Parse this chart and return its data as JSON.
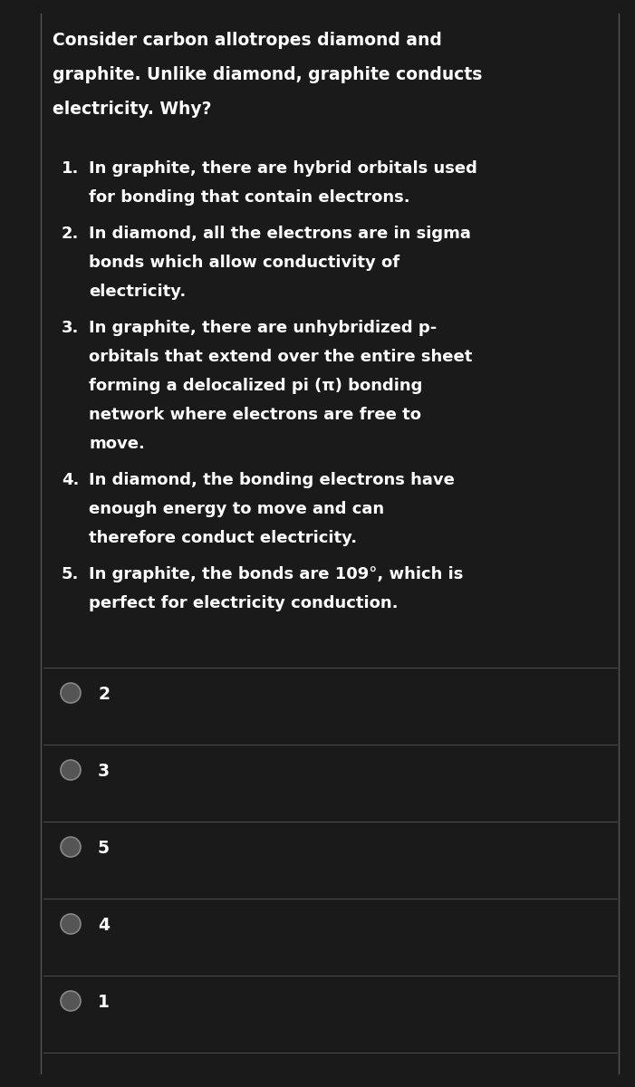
{
  "bg_color": "#1a1a1a",
  "text_color": "#ffffff",
  "line_color": "#4a4a4a",
  "border_color": "#555555",
  "circle_fill": "#555555",
  "circle_edge": "#888888",
  "prompt_text": "Consider carbon allotropes diamond and\ngraphite. Unlike diamond, graphite conducts\nelectricity. Why?",
  "items": [
    {
      "num": "1.",
      "lines": [
        "In graphite, there are hybrid orbitals used",
        "for bonding that contain electrons."
      ]
    },
    {
      "num": "2.",
      "lines": [
        "In diamond, all the electrons are in sigma",
        "bonds which allow conductivity of",
        "electricity."
      ]
    },
    {
      "num": "3.",
      "lines": [
        "In graphite, there are unhybridized p-",
        "orbitals that extend over the entire sheet",
        "forming a delocalized pi (π) bonding",
        "network where electrons are free to",
        "move."
      ]
    },
    {
      "num": "4.",
      "lines": [
        "In diamond, the bonding electrons have",
        "enough energy to move and can",
        "therefore conduct electricity."
      ]
    },
    {
      "num": "5.",
      "lines": [
        "In graphite, the bonds are 109°, which is",
        "perfect for electricity conduction."
      ]
    }
  ],
  "choices": [
    "2",
    "3",
    "5",
    "4",
    "1"
  ],
  "font_size_prompt": 13.5,
  "font_size_items": 13.0,
  "font_size_choices": 13.5,
  "fig_width": 7.01,
  "fig_height": 12.0,
  "dpi": 100
}
